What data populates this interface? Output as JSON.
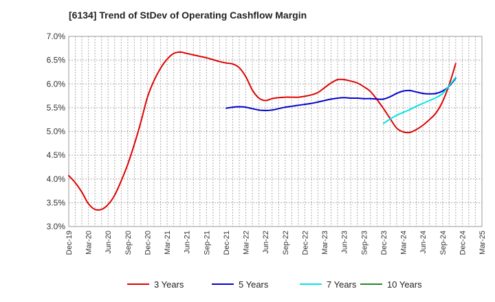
{
  "title": "[6134]  Trend of StDev of Operating Cashflow Margin",
  "chart_data": {
    "type": "line",
    "title": "[6134]  Trend of StDev of Operating Cashflow Margin",
    "xlabel": "",
    "ylabel": "",
    "ylim": [
      3.0,
      7.0
    ],
    "y_ticks": [
      "3.0%",
      "3.5%",
      "4.0%",
      "4.5%",
      "5.0%",
      "5.5%",
      "6.0%",
      "6.5%",
      "7.0%"
    ],
    "x_ticks": [
      "Dec-19",
      "Mar-20",
      "Jun-20",
      "Sep-20",
      "Dec-20",
      "Mar-21",
      "Jun-21",
      "Sep-21",
      "Dec-21",
      "Mar-22",
      "Jun-22",
      "Sep-22",
      "Dec-22",
      "Mar-23",
      "Jun-23",
      "Sep-23",
      "Dec-23",
      "Mar-24",
      "Jun-24",
      "Sep-24",
      "Dec-24",
      "Mar-25"
    ],
    "grid": true,
    "legend_position": "bottom",
    "series": [
      {
        "name": "3 Years",
        "color": "#dd0000",
        "points": [
          [
            "2019-12",
            4.07
          ],
          [
            "2020-01",
            3.92
          ],
          [
            "2020-02",
            3.72
          ],
          [
            "2020-03",
            3.48
          ],
          [
            "2020-04",
            3.36
          ],
          [
            "2020-05",
            3.36
          ],
          [
            "2020-06",
            3.46
          ],
          [
            "2020-07",
            3.66
          ],
          [
            "2020-08",
            3.96
          ],
          [
            "2020-09",
            4.31
          ],
          [
            "2020-10",
            4.73
          ],
          [
            "2020-11",
            5.2
          ],
          [
            "2020-12",
            5.72
          ],
          [
            "2021-01",
            6.07
          ],
          [
            "2021-02",
            6.33
          ],
          [
            "2021-03",
            6.52
          ],
          [
            "2021-04",
            6.64
          ],
          [
            "2021-05",
            6.67
          ],
          [
            "2021-06",
            6.64
          ],
          [
            "2021-07",
            6.61
          ],
          [
            "2021-08",
            6.58
          ],
          [
            "2021-09",
            6.55
          ],
          [
            "2021-10",
            6.51
          ],
          [
            "2021-11",
            6.47
          ],
          [
            "2021-12",
            6.44
          ],
          [
            "2022-01",
            6.42
          ],
          [
            "2022-02",
            6.34
          ],
          [
            "2022-03",
            6.15
          ],
          [
            "2022-04",
            5.87
          ],
          [
            "2022-05",
            5.7
          ],
          [
            "2022-06",
            5.65
          ],
          [
            "2022-07",
            5.69
          ],
          [
            "2022-08",
            5.71
          ],
          [
            "2022-09",
            5.72
          ],
          [
            "2022-10",
            5.72
          ],
          [
            "2022-11",
            5.72
          ],
          [
            "2022-12",
            5.74
          ],
          [
            "2023-01",
            5.77
          ],
          [
            "2023-02",
            5.82
          ],
          [
            "2023-03",
            5.92
          ],
          [
            "2023-04",
            6.02
          ],
          [
            "2023-05",
            6.09
          ],
          [
            "2023-06",
            6.09
          ],
          [
            "2023-07",
            6.06
          ],
          [
            "2023-08",
            6.02
          ],
          [
            "2023-09",
            5.94
          ],
          [
            "2023-10",
            5.84
          ],
          [
            "2023-11",
            5.67
          ],
          [
            "2023-12",
            5.48
          ],
          [
            "2024-01",
            5.27
          ],
          [
            "2024-02",
            5.07
          ],
          [
            "2024-03",
            4.99
          ],
          [
            "2024-04",
            4.98
          ],
          [
            "2024-05",
            5.04
          ],
          [
            "2024-06",
            5.13
          ],
          [
            "2024-07",
            5.25
          ],
          [
            "2024-08",
            5.39
          ],
          [
            "2024-09",
            5.63
          ],
          [
            "2024-10",
            5.98
          ],
          [
            "2024-11",
            6.43
          ]
        ]
      },
      {
        "name": "5 Years",
        "color": "#0000cc",
        "points": [
          [
            "2021-12",
            5.49
          ],
          [
            "2022-01",
            5.51
          ],
          [
            "2022-02",
            5.52
          ],
          [
            "2022-03",
            5.51
          ],
          [
            "2022-04",
            5.48
          ],
          [
            "2022-05",
            5.45
          ],
          [
            "2022-06",
            5.44
          ],
          [
            "2022-07",
            5.45
          ],
          [
            "2022-08",
            5.48
          ],
          [
            "2022-09",
            5.51
          ],
          [
            "2022-10",
            5.53
          ],
          [
            "2022-11",
            5.55
          ],
          [
            "2022-12",
            5.57
          ],
          [
            "2023-01",
            5.59
          ],
          [
            "2023-02",
            5.62
          ],
          [
            "2023-03",
            5.65
          ],
          [
            "2023-04",
            5.68
          ],
          [
            "2023-05",
            5.7
          ],
          [
            "2023-06",
            5.71
          ],
          [
            "2023-07",
            5.7
          ],
          [
            "2023-08",
            5.7
          ],
          [
            "2023-09",
            5.69
          ],
          [
            "2023-10",
            5.69
          ],
          [
            "2023-11",
            5.68
          ],
          [
            "2023-12",
            5.68
          ],
          [
            "2024-01",
            5.73
          ],
          [
            "2024-02",
            5.8
          ],
          [
            "2024-03",
            5.85
          ],
          [
            "2024-04",
            5.86
          ],
          [
            "2024-05",
            5.83
          ],
          [
            "2024-06",
            5.8
          ],
          [
            "2024-07",
            5.79
          ],
          [
            "2024-08",
            5.8
          ],
          [
            "2024-09",
            5.85
          ],
          [
            "2024-10",
            5.95
          ],
          [
            "2024-11",
            6.12
          ]
        ]
      },
      {
        "name": "7 Years",
        "color": "#00e5e5",
        "points": [
          [
            "2023-12",
            5.17
          ],
          [
            "2024-01",
            5.26
          ],
          [
            "2024-02",
            5.34
          ],
          [
            "2024-03",
            5.4
          ],
          [
            "2024-04",
            5.46
          ],
          [
            "2024-05",
            5.53
          ],
          [
            "2024-06",
            5.59
          ],
          [
            "2024-07",
            5.65
          ],
          [
            "2024-08",
            5.71
          ],
          [
            "2024-09",
            5.8
          ],
          [
            "2024-10",
            5.96
          ],
          [
            "2024-11",
            6.14
          ]
        ]
      },
      {
        "name": "10 Years",
        "color": "#228822",
        "points": []
      }
    ]
  }
}
